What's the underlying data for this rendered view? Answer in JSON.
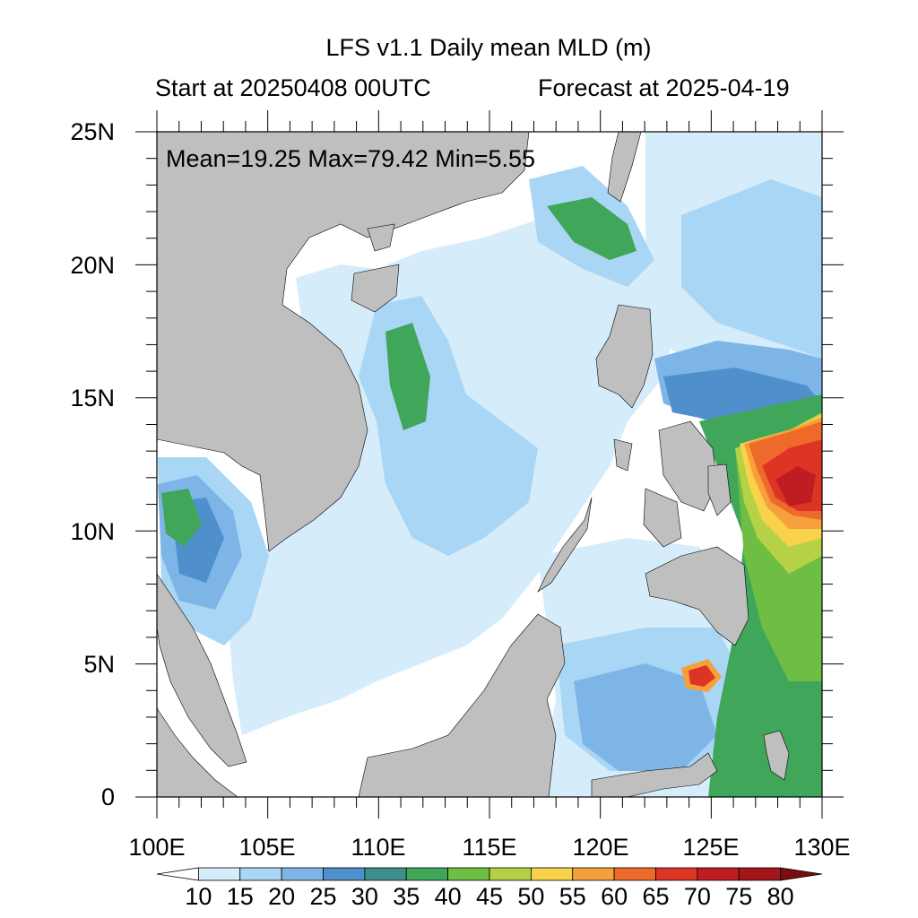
{
  "title": "LFS v1.1 Daily mean MLD (m)",
  "subtitle_left": "Start at 20250408 00UTC",
  "subtitle_right": "Forecast at 2025-04-19",
  "stats": "Mean=19.25  Max=79.42  Min=5.55",
  "lat_labels": [
    "25N",
    "20N",
    "15N",
    "10N",
    "5N",
    "0"
  ],
  "lon_labels": [
    "100E",
    "105E",
    "110E",
    "115E",
    "120E",
    "125E",
    "130E"
  ],
  "colorbar": {
    "labels": [
      "10",
      "15",
      "20",
      "25",
      "30",
      "35",
      "40",
      "45",
      "50",
      "55",
      "60",
      "65",
      "70",
      "75",
      "80"
    ],
    "colors": [
      "#ffffff",
      "#d5ecfa",
      "#a9d6f5",
      "#7db6e6",
      "#4f8fcc",
      "#3d8f8c",
      "#3fa65a",
      "#6fbe44",
      "#b5d246",
      "#f8d24a",
      "#f5a03a",
      "#ee6a2a",
      "#dd3426",
      "#c01d22",
      "#a3161c",
      "#7a0d12"
    ]
  },
  "colors": {
    "land": "#bfbfbf",
    "ocean_low": "#ffffff"
  }
}
